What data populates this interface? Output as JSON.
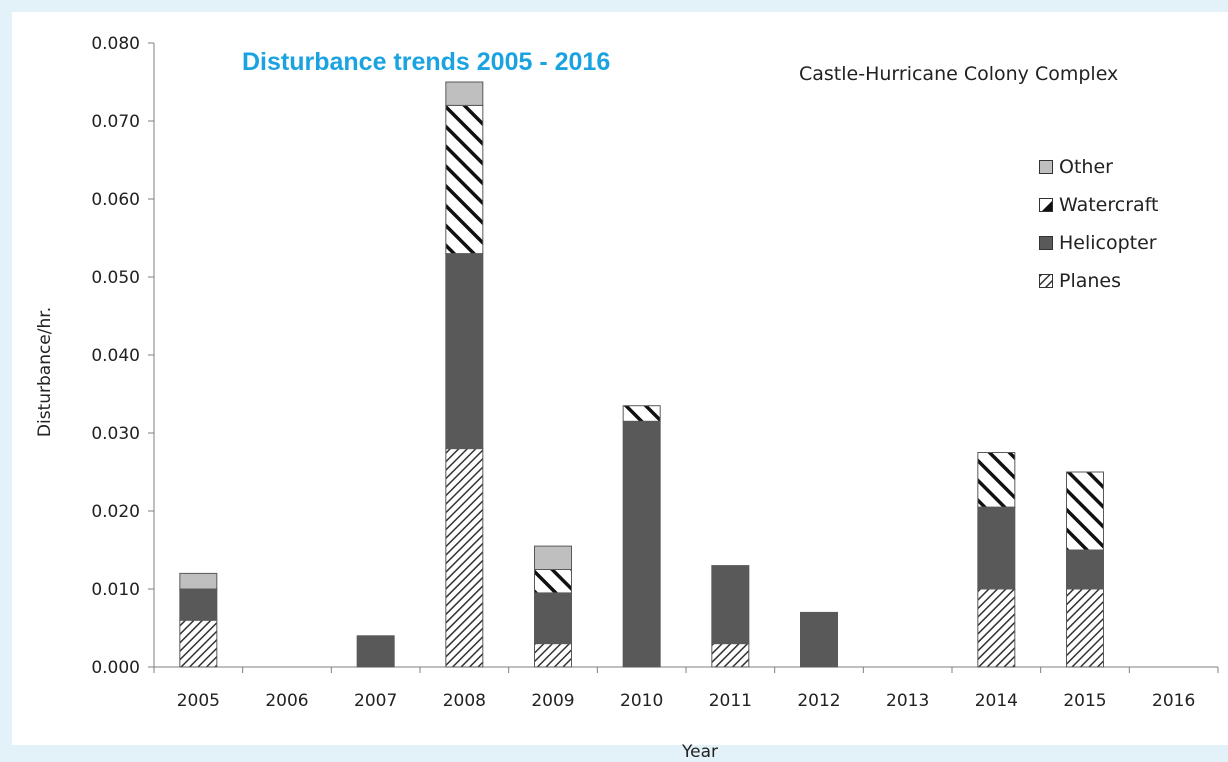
{
  "chart_data": {
    "type": "bar",
    "stacked": true,
    "title": "Disturbance trends 2005 - 2016",
    "subtitle": "Castle-Hurricane Colony Complex",
    "xlabel": "Year",
    "ylabel": "Disturbance/hr.",
    "ylim": [
      0,
      0.08
    ],
    "yticks": [
      "0.000",
      "0.010",
      "0.020",
      "0.030",
      "0.040",
      "0.050",
      "0.060",
      "0.070",
      "0.080"
    ],
    "categories": [
      "2005",
      "2006",
      "2007",
      "2008",
      "2009",
      "2010",
      "2011",
      "2012",
      "2013",
      "2014",
      "2015",
      "2016"
    ],
    "legend_position": "right",
    "grid": false,
    "series": [
      {
        "name": "Planes",
        "fill": "hatch-planes",
        "values": [
          0.006,
          0,
          0,
          0.028,
          0.003,
          0,
          0.003,
          0,
          0,
          0.01,
          0.01,
          0
        ]
      },
      {
        "name": "Helicopter",
        "fill": "#595959",
        "values": [
          0.004,
          0,
          0.004,
          0.025,
          0.0065,
          0.0315,
          0.01,
          0.007,
          0,
          0.0105,
          0.005,
          0
        ]
      },
      {
        "name": "Watercraft",
        "fill": "hatch-watercraft",
        "values": [
          0,
          0,
          0,
          0.019,
          0.003,
          0.002,
          0,
          0,
          0,
          0.007,
          0.01,
          0
        ]
      },
      {
        "name": "Other",
        "fill": "#bfbfbf",
        "values": [
          0.002,
          0,
          0,
          0.003,
          0.003,
          0,
          0,
          0,
          0,
          0,
          0,
          0
        ]
      }
    ],
    "legend_order": [
      "Other",
      "Watercraft",
      "Helicopter",
      "Planes"
    ]
  }
}
